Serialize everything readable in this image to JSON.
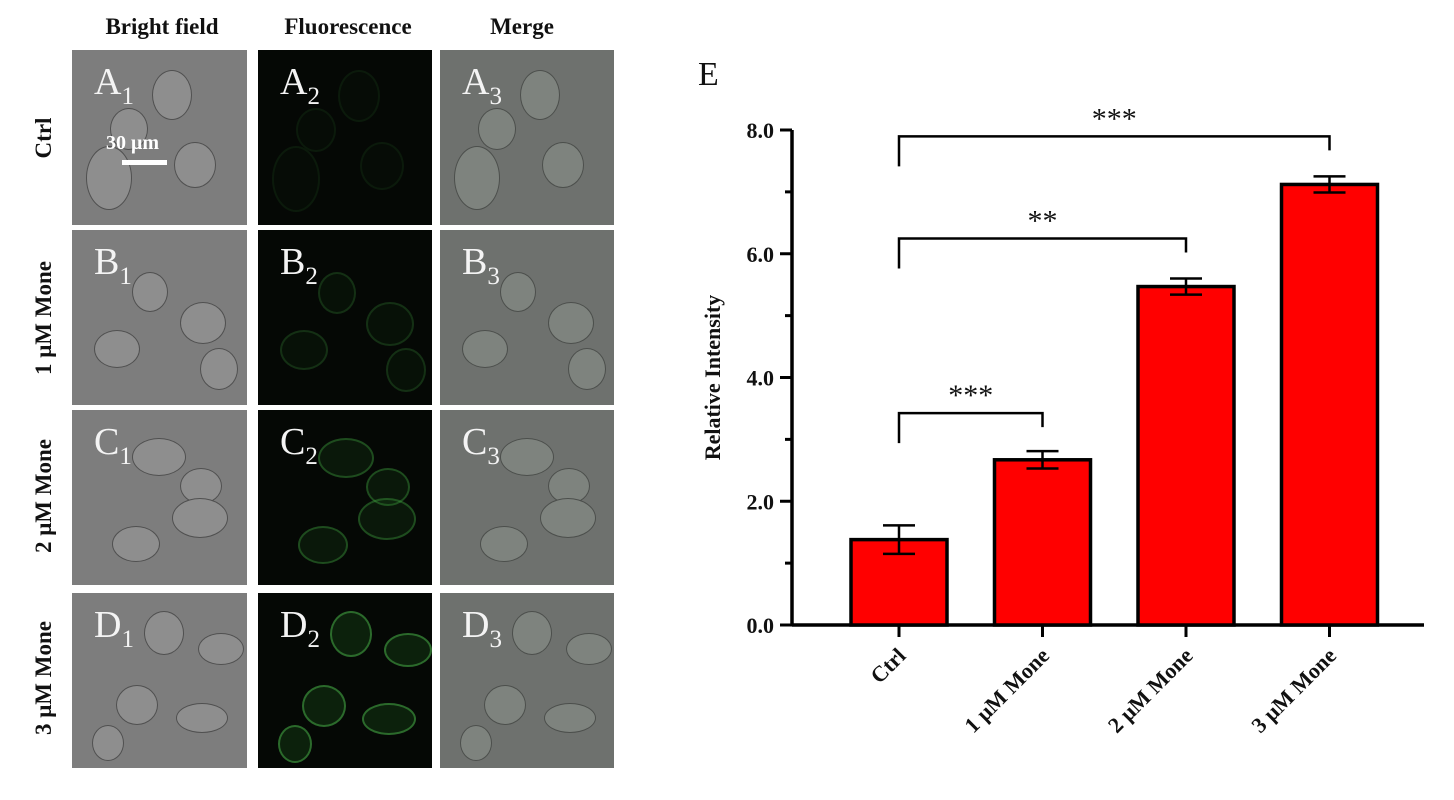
{
  "micrograph": {
    "column_headers": [
      "Bright field",
      "Fluorescence",
      "Merge"
    ],
    "row_labels": [
      "Ctrl",
      "1 μM Mone",
      "2 μM Mone",
      "3 μM Mone"
    ],
    "panel_letters": [
      "A",
      "B",
      "C",
      "D"
    ],
    "panel_indices": [
      "1",
      "2",
      "3"
    ],
    "scale_bar_label": "30 μm"
  },
  "chart_data": {
    "type": "bar",
    "panel_label": "E",
    "categories": [
      "Ctrl",
      "1 μM Mone",
      "2 μM Mone",
      "3 μM Mone"
    ],
    "values": [
      1.38,
      2.67,
      5.47,
      7.12
    ],
    "errors": [
      0.23,
      0.14,
      0.13,
      0.13
    ],
    "ylabel": "Relative Intensity",
    "xlabel": "",
    "ylim": [
      0,
      8
    ],
    "yticks": [
      0,
      2,
      4,
      6,
      8
    ],
    "ytick_labels": [
      "0.0",
      "2.0",
      "4.0",
      "6.0",
      "8.0"
    ],
    "bar_color": "#ff0000",
    "significance": [
      {
        "from": 0,
        "to": 1,
        "label": "***"
      },
      {
        "from": 0,
        "to": 2,
        "label": "**"
      },
      {
        "from": 0,
        "to": 3,
        "label": "***"
      }
    ]
  }
}
